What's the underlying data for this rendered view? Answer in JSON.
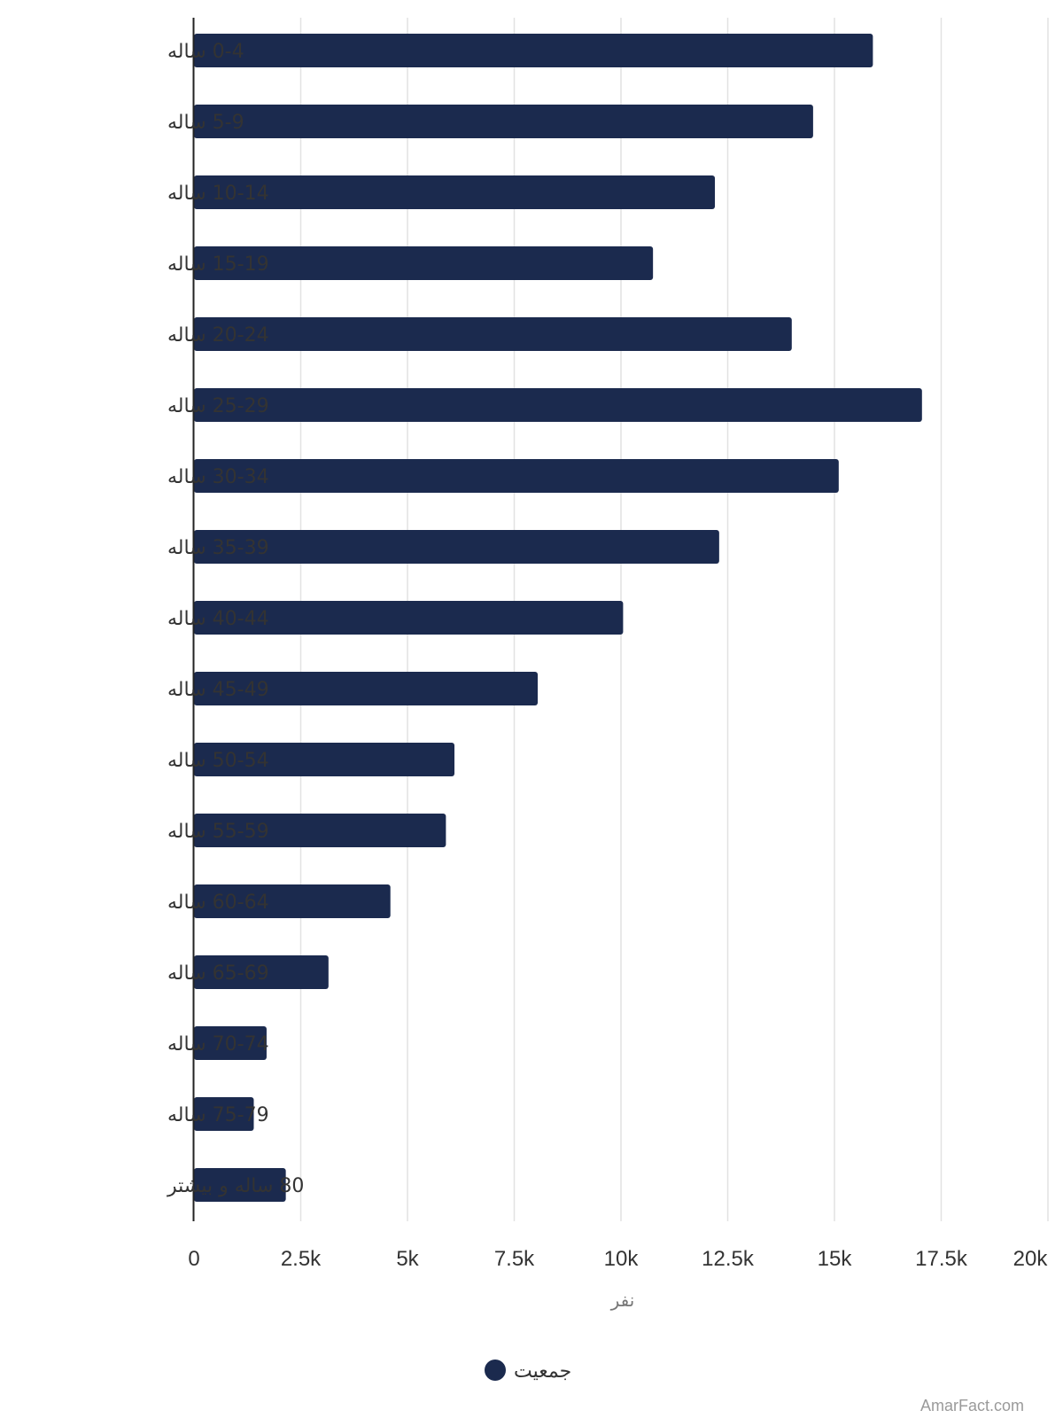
{
  "chart_data": {
    "type": "bar",
    "orientation": "horizontal",
    "categories": [
      "0-4 ساله",
      "5-9 ساله",
      "10-14 ساله",
      "15-19 ساله",
      "20-24 ساله",
      "25-29 ساله",
      "30-34 ساله",
      "35-39 ساله",
      "40-44 ساله",
      "45-49 ساله",
      "50-54 ساله",
      "55-59 ساله",
      "60-64 ساله",
      "65-69 ساله",
      "70-74 ساله",
      "75-79 ساله",
      "80 ساله و بیشتر"
    ],
    "series": [
      {
        "name": "جمعیت",
        "values": [
          15900,
          14500,
          12200,
          10750,
          14000,
          17050,
          15100,
          12300,
          10050,
          8050,
          6100,
          5900,
          4600,
          3150,
          1700,
          1400,
          2150
        ]
      }
    ],
    "xlabel": "نفر",
    "xlim": [
      0,
      20000
    ],
    "xticks": [
      "0",
      "2.5k",
      "5k",
      "7.5k",
      "10k",
      "12.5k",
      "15k",
      "17.5k",
      "20k"
    ],
    "grid": true,
    "legend_position": "bottom",
    "bar_color": "#1b2a4e"
  },
  "watermark": "AmarFact.com"
}
